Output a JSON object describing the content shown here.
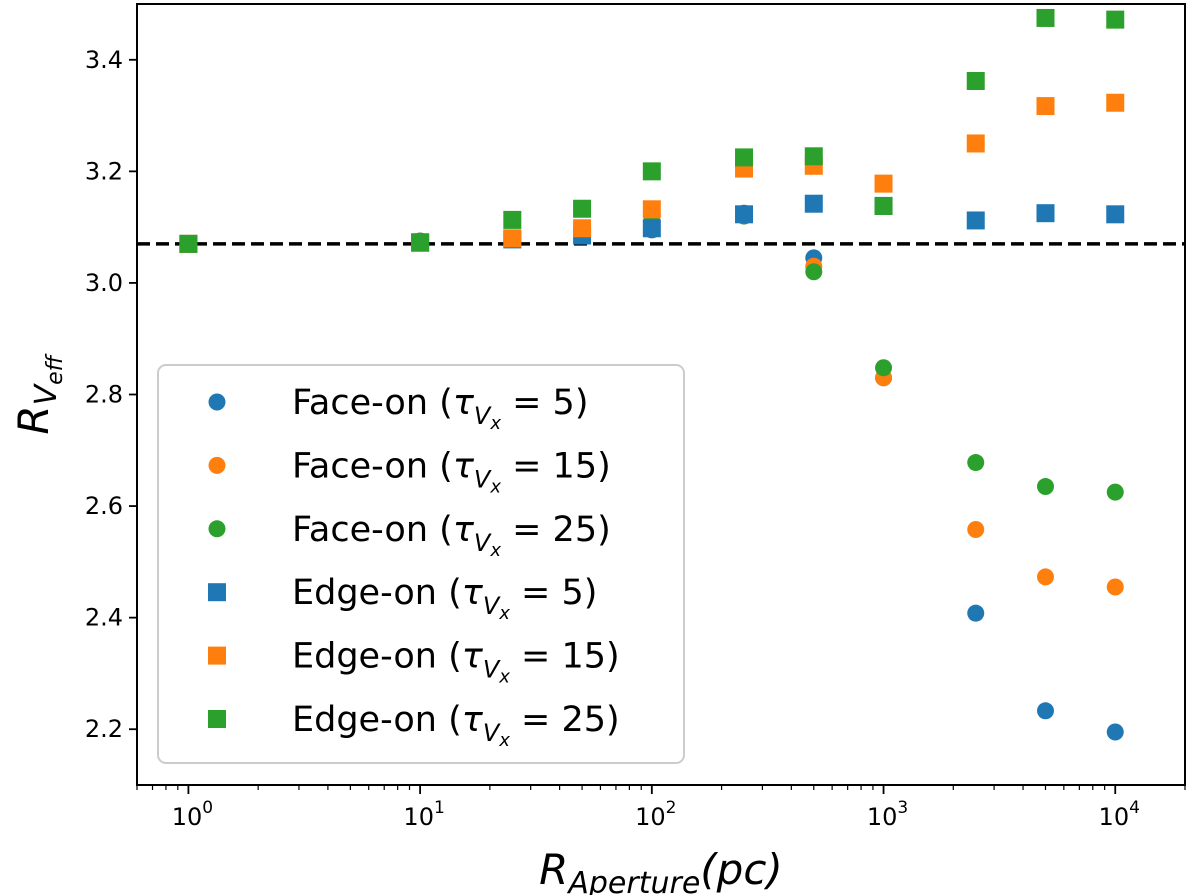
{
  "chart_data": {
    "type": "scatter",
    "title": "",
    "xlabel": {
      "base": "R",
      "sub": "Aperture",
      "rest": "(pc)"
    },
    "ylabel": {
      "base": "R",
      "sub": "V",
      "subsub": "eff"
    },
    "xscale": "log",
    "xlim": [
      0.6,
      20000
    ],
    "ylim": [
      2.1,
      3.5
    ],
    "xticks": [
      {
        "value": 1,
        "base": "10",
        "exp": "0"
      },
      {
        "value": 10,
        "base": "10",
        "exp": "1"
      },
      {
        "value": 100,
        "base": "10",
        "exp": "2"
      },
      {
        "value": 1000,
        "base": "10",
        "exp": "3"
      },
      {
        "value": 10000,
        "base": "10",
        "exp": "4"
      }
    ],
    "yticks": [
      {
        "value": 2.2,
        "label": "2.2"
      },
      {
        "value": 2.4,
        "label": "2.4"
      },
      {
        "value": 2.6,
        "label": "2.6"
      },
      {
        "value": 2.8,
        "label": "2.8"
      },
      {
        "value": 3.0,
        "label": "3.0"
      },
      {
        "value": 3.2,
        "label": "3.2"
      },
      {
        "value": 3.4,
        "label": "3.4"
      }
    ],
    "reference_line": {
      "y": 3.07,
      "style": "dashed",
      "color": "#000000"
    },
    "legend_position": "lower-left",
    "x": [
      1,
      10,
      25,
      50,
      100,
      250,
      500,
      1000,
      2500,
      5000,
      10000
    ],
    "series": [
      {
        "name": "Face-on",
        "tau": "5",
        "marker": "circle",
        "color": "#1f77b4",
        "values": [
          3.07,
          3.075,
          3.08,
          3.085,
          3.095,
          3.125,
          3.045,
          2.83,
          2.408,
          2.233,
          2.195
        ]
      },
      {
        "name": "Face-on",
        "tau": "15",
        "marker": "circle",
        "color": "#ff7f0e",
        "values": [
          3.07,
          3.075,
          3.08,
          3.085,
          3.11,
          3.12,
          3.03,
          2.83,
          2.558,
          2.473,
          2.455
        ]
      },
      {
        "name": "Face-on",
        "tau": "25",
        "marker": "circle",
        "color": "#2ca02c",
        "values": [
          3.07,
          3.075,
          3.08,
          3.085,
          3.11,
          3.12,
          3.02,
          2.848,
          2.678,
          2.635,
          2.625
        ]
      },
      {
        "name": "Edge-on",
        "tau": "5",
        "marker": "square",
        "color": "#1f77b4",
        "values": [
          3.07,
          3.072,
          3.078,
          3.085,
          3.098,
          3.123,
          3.142,
          3.138,
          3.112,
          3.125,
          3.123
        ]
      },
      {
        "name": "Edge-on",
        "tau": "15",
        "marker": "square",
        "color": "#ff7f0e",
        "values": [
          3.07,
          3.072,
          3.08,
          3.098,
          3.132,
          3.205,
          3.21,
          3.178,
          3.25,
          3.317,
          3.323
        ]
      },
      {
        "name": "Edge-on",
        "tau": "25",
        "marker": "square",
        "color": "#2ca02c",
        "values": [
          3.07,
          3.073,
          3.113,
          3.133,
          3.2,
          3.225,
          3.227,
          3.138,
          3.362,
          3.475,
          3.472
        ]
      }
    ]
  }
}
